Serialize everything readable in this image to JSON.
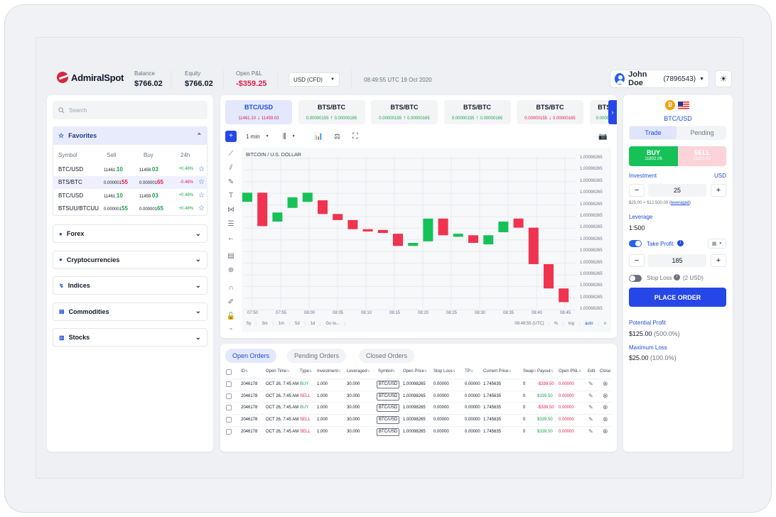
{
  "app": {
    "logo_text": "AdmiralSpot"
  },
  "header": {
    "balance_label": "Balance",
    "balance_value": "$766.02",
    "equity_label": "Equity",
    "equity_value": "$766.02",
    "pnl_label": "Open P&L",
    "pnl_value": "-$359.25",
    "account_type": "USD (CFD)",
    "datetime": "08:49:55 UTC 19 Oct 2020",
    "user_name": "John Doe",
    "user_id": "(7896543)"
  },
  "sidebar": {
    "search_placeholder": "Search",
    "favorites_label": "Favorites",
    "columns": [
      "Symbol",
      "Sell",
      "Buy",
      "24h"
    ],
    "rows": [
      {
        "symbol": "BTC/USD",
        "sell_a": "11461.",
        "sell_b": "10",
        "sell_dir": "up",
        "buy_a": "11459.",
        "buy_b": "03",
        "buy_dir": "up",
        "pct": "+0.48%",
        "pct_dir": "up"
      },
      {
        "symbol": "BTS/BTC",
        "sell_a": "0.000001",
        "sell_b": "55",
        "sell_dir": "down",
        "buy_a": "0.000001",
        "buy_b": "65",
        "buy_dir": "down",
        "pct": "-0.48%",
        "pct_dir": "down"
      },
      {
        "symbol": "BTC/USD",
        "sell_a": "11461.",
        "sell_b": "10",
        "sell_dir": "up",
        "buy_a": "11459.",
        "buy_b": "03",
        "buy_dir": "up",
        "pct": "+0.48%",
        "pct_dir": "up"
      },
      {
        "symbol": "BTSUU/BTCUU",
        "sell_a": "0.000001",
        "sell_b": "55",
        "sell_dir": "up",
        "buy_a": "0.000001",
        "buy_b": "65",
        "buy_dir": "up",
        "pct": "+0.48%",
        "pct_dir": "up"
      }
    ],
    "categories": [
      "Forex",
      "Cryptocurrencies",
      "Indices",
      "Commodities",
      "Stocks"
    ]
  },
  "tickers": [
    {
      "name": "BTC/USD",
      "left": "11461.10",
      "arrow": "↓",
      "right": "11459.03",
      "dir": "down",
      "active": true
    },
    {
      "name": "BTS/BTC",
      "left": "0.00000155",
      "arrow": "↑",
      "right": "0.00000165",
      "dir": "up"
    },
    {
      "name": "BTS/BTC",
      "left": "0.00000155",
      "arrow": "↑",
      "right": "0.00000165",
      "dir": "up"
    },
    {
      "name": "BTS/BTC",
      "left": "0.00000155",
      "arrow": "↑",
      "right": "0.00000165",
      "dir": "up"
    },
    {
      "name": "BTS/BTC",
      "left": "0.00000155",
      "arrow": "↓",
      "right": "0.00000165",
      "dir": "down"
    },
    {
      "name": "BTS/",
      "left": "0.00000",
      "arrow": "",
      "right": "",
      "dir": "up"
    }
  ],
  "chart_toolbar": {
    "interval": "1 min"
  },
  "chart_footer": {
    "ranges": [
      "5y",
      "3m",
      "1m",
      "5d",
      "1d",
      "Go to..."
    ],
    "time": "08:49:55 (UTC)",
    "options": [
      "%",
      "log",
      "auto",
      "o"
    ]
  },
  "chart_data": {
    "type": "candlestick",
    "title": "BITCOIN / U.S. DOLLAR",
    "y_tick_labels": [
      "1.00098265",
      "1.00098265",
      "1.00098265",
      "1.00098265",
      "1.00098265",
      "1.00098265",
      "1.00098265",
      "1.00098265",
      "1.00098265",
      "1.00098265",
      "1.00098265",
      "1.00098265",
      "1.00098265",
      "1.00098265"
    ],
    "x_tick_labels": [
      "07:50",
      "07:55",
      "08:00",
      "08:05",
      "08:10",
      "08:15",
      "08:20",
      "08:25",
      "08:30",
      "08:35",
      "08:40",
      "08:45"
    ],
    "y_range_units": [
      0,
      100
    ],
    "candles": [
      {
        "o": 70,
        "c": 76,
        "dir": "up"
      },
      {
        "o": 76,
        "c": 54,
        "dir": "down"
      },
      {
        "o": 57,
        "c": 63,
        "dir": "up"
      },
      {
        "o": 66,
        "c": 73,
        "dir": "up"
      },
      {
        "o": 70,
        "c": 76,
        "dir": "up"
      },
      {
        "o": 71,
        "c": 62,
        "dir": "down"
      },
      {
        "o": 62,
        "c": 58,
        "dir": "down"
      },
      {
        "o": 58,
        "c": 52,
        "dir": "down"
      },
      {
        "o": 52,
        "c": 50.5,
        "dir": "down"
      },
      {
        "o": 51.5,
        "c": 49.5,
        "dir": "down"
      },
      {
        "o": 49,
        "c": 41,
        "dir": "down"
      },
      {
        "o": 41,
        "c": 43,
        "dir": "up"
      },
      {
        "o": 44,
        "c": 59,
        "dir": "up"
      },
      {
        "o": 59,
        "c": 48,
        "dir": "down"
      },
      {
        "o": 47,
        "c": 49,
        "dir": "up"
      },
      {
        "o": 48,
        "c": 43,
        "dir": "down"
      },
      {
        "o": 42,
        "c": 48,
        "dir": "up"
      },
      {
        "o": 50,
        "c": 57,
        "dir": "up"
      },
      {
        "o": 59,
        "c": 53,
        "dir": "down"
      },
      {
        "o": 53,
        "c": 29,
        "dir": "down"
      },
      {
        "o": 29,
        "c": 13,
        "dir": "down"
      },
      {
        "o": 13,
        "c": 4,
        "dir": "down"
      }
    ]
  },
  "orders": {
    "tabs": [
      "Open Orders",
      "Pending Orders",
      "Closed Orders"
    ],
    "headers": [
      "ID",
      "Open Time",
      "Type",
      "Investment",
      "Leveraged",
      "Symbol",
      "Open Price",
      "Stop Loss",
      "TP",
      "Current Price",
      "Swap",
      "Payout",
      "Open PNL",
      "Edit",
      "Close"
    ],
    "rows": [
      {
        "id": "2046178",
        "time": "OCT 26, 7:45 AM",
        "type": "BUY",
        "inv": "1.000",
        "lev": "30.000",
        "sym": "BTC/USD",
        "open": "1.00098265",
        "sl": "0.00000",
        "tp": "0.00000",
        "cur": "1.745635",
        "swap": "0",
        "payout": "-$339.50",
        "pnl": "0.00000"
      },
      {
        "id": "2046178",
        "time": "OCT 26, 7:45 AM",
        "type": "SELL",
        "inv": "1.000",
        "lev": "30.000",
        "sym": "BTC/USD",
        "open": "1.00098265",
        "sl": "0.00000",
        "tp": "0.00000",
        "cur": "1.745635",
        "swap": "0",
        "payout": "$339.50",
        "pnl": "0.00000"
      },
      {
        "id": "2046178",
        "time": "OCT 26, 7:45 AM",
        "type": "BUY",
        "inv": "1.000",
        "lev": "30.000",
        "sym": "BTC/USD",
        "open": "1.00098265",
        "sl": "0.00000",
        "tp": "0.00000",
        "cur": "1.745635",
        "swap": "0",
        "payout": "-$339.50",
        "pnl": "0.00000"
      },
      {
        "id": "2046178",
        "time": "OCT 26, 7:45 AM",
        "type": "SELL",
        "inv": "1.000",
        "lev": "30.000",
        "sym": "BTC/USD",
        "open": "1.00098265",
        "sl": "0.00000",
        "tp": "0.00000",
        "cur": "1.745635",
        "swap": "0",
        "payout": "$339.50",
        "pnl": "0.00000"
      },
      {
        "id": "2046178",
        "time": "OCT 26, 7:45 AM",
        "type": "SELL",
        "inv": "1.000",
        "lev": "30.000",
        "sym": "BTC/USD",
        "open": "1.00098265",
        "sl": "0.00000",
        "tp": "0.00000",
        "cur": "1.745635",
        "swap": "0",
        "payout": "$339.50",
        "pnl": "0.00000"
      }
    ]
  },
  "trade_panel": {
    "symbol": "BTC/USD",
    "coin_glyph": "₿",
    "tab_trade": "Trade",
    "tab_pending": "Pending",
    "buy_label": "BUY",
    "buy_price": "11802.06",
    "sell_label": "SELL",
    "sell_price": "11801.52",
    "investment_label": "Investment",
    "investment_currency": "USD",
    "investment_value": "25",
    "investment_note_a": "$25.00 = $12,500.00 (",
    "investment_note_link": "leveraged",
    "investment_note_b": ")",
    "leverage_label": "Leverage",
    "leverage_value": "1:500",
    "take_profit_label": "Take Profit",
    "take_profit_value": "185",
    "stop_loss_label": "Stop Loss",
    "stop_loss_note": "(2 USD)",
    "place_order_label": "PLACE ORDER",
    "potential_profit_label": "Potential Profit",
    "potential_profit_value": "$125.00",
    "potential_profit_pct": "(500.0%)",
    "max_loss_label": "Maximum Loss",
    "max_loss_value": "$25.00",
    "max_loss_pct": "(100.0%)"
  },
  "colors": {
    "accent": "#2547e8",
    "up": "#16c257",
    "down": "#f0334f"
  }
}
